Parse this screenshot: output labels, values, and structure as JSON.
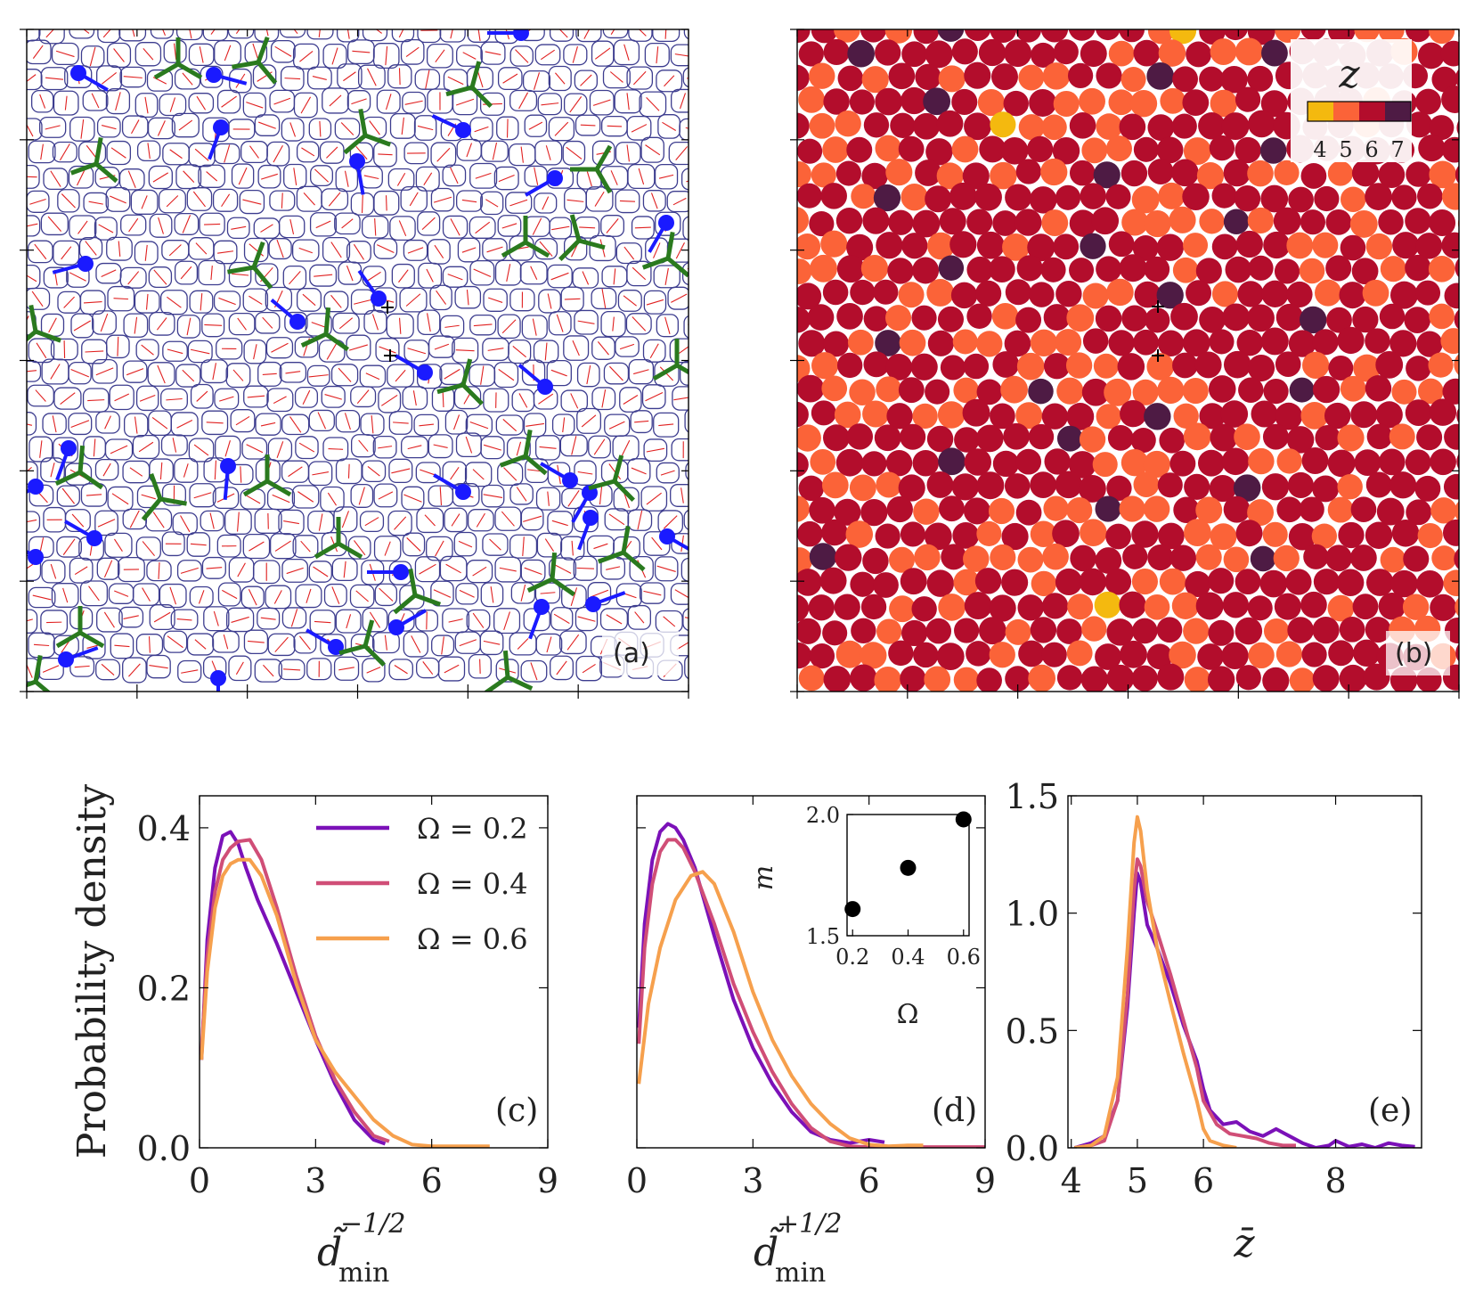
{
  "panels": {
    "a": {
      "label": "(a)"
    },
    "b": {
      "label": "(b)",
      "colorbar": {
        "title": "z",
        "ticks": [
          "4",
          "5",
          "6",
          "7"
        ],
        "colors": [
          "#f4b90f",
          "#fb6338",
          "#b30d2c",
          "#4e1b44"
        ]
      },
      "cell_colors": {
        "4": "#f4b90f",
        "5": "#fb6338",
        "6": "#b30d2c",
        "7": "#4e1b44"
      }
    }
  },
  "icon_names": [
    "positive-defect-marker-icon",
    "negative-defect-marker-icon",
    "core-cross-icon"
  ],
  "colors": {
    "cell_outline": "#3d3d8f",
    "orientation_line": "#e02020",
    "plus_half_defect": "#1a1aff",
    "minus_half_defect": "#2a7a1e"
  },
  "shared": {
    "ylabel": "Probability density"
  },
  "chart_data": [
    {
      "type": "line",
      "id": "c",
      "label": "(c)",
      "xlabel": "d̃",
      "xlabel_sup": "−1/2",
      "xlabel_sub": "min",
      "xlim": [
        0,
        9
      ],
      "ylim": [
        0,
        0.44
      ],
      "xticks": [
        0,
        3,
        6,
        9
      ],
      "yticks": [
        0.0,
        0.2,
        0.4
      ],
      "ytick_labels": [
        "0.0",
        "0.2",
        "0.4"
      ],
      "legend": [
        "Ω = 0.2",
        "Ω = 0.4",
        "Ω = 0.6"
      ],
      "series": [
        {
          "name": "Ω = 0.2",
          "color": "#7b11b8",
          "x": [
            0.05,
            0.2,
            0.4,
            0.6,
            0.8,
            1.0,
            1.2,
            1.5,
            2.0,
            2.5,
            3.0,
            3.5,
            4.0,
            4.5,
            4.8
          ],
          "y": [
            0.11,
            0.26,
            0.35,
            0.39,
            0.395,
            0.38,
            0.35,
            0.31,
            0.255,
            0.195,
            0.135,
            0.08,
            0.035,
            0.01,
            0.005
          ]
        },
        {
          "name": "Ω = 0.4",
          "color": "#d04e77",
          "x": [
            0.05,
            0.2,
            0.4,
            0.6,
            0.8,
            1.0,
            1.3,
            1.6,
            2.0,
            2.5,
            3.0,
            3.5,
            4.0,
            4.5,
            4.9
          ],
          "y": [
            0.12,
            0.24,
            0.32,
            0.36,
            0.375,
            0.383,
            0.385,
            0.36,
            0.3,
            0.215,
            0.14,
            0.085,
            0.045,
            0.015,
            0.008
          ]
        },
        {
          "name": "Ω = 0.6",
          "color": "#f6a04d",
          "x": [
            0.05,
            0.2,
            0.4,
            0.6,
            0.8,
            1.0,
            1.3,
            1.6,
            2.0,
            2.5,
            3.0,
            3.5,
            4.0,
            4.5,
            5.0,
            5.5,
            6.0,
            7.0,
            7.5
          ],
          "y": [
            0.11,
            0.22,
            0.3,
            0.34,
            0.355,
            0.36,
            0.36,
            0.34,
            0.29,
            0.205,
            0.135,
            0.095,
            0.065,
            0.035,
            0.015,
            0.004,
            0.002,
            0.002,
            0.002
          ]
        }
      ]
    },
    {
      "type": "line",
      "id": "d",
      "label": "(d)",
      "xlabel": "d̃",
      "xlabel_sup": "+1/2",
      "xlabel_sub": "min",
      "xlim": [
        0,
        9
      ],
      "ylim": [
        0,
        0.44
      ],
      "xticks": [
        0,
        3,
        6,
        9
      ],
      "yticks": [
        0.0,
        0.2,
        0.4
      ],
      "series": [
        {
          "name": "Ω = 0.2",
          "color": "#7b11b8",
          "x": [
            0.05,
            0.2,
            0.4,
            0.6,
            0.8,
            1.0,
            1.2,
            1.5,
            2.0,
            2.5,
            3.0,
            3.5,
            4.0,
            4.5,
            5.0,
            5.5,
            6.0,
            6.4
          ],
          "y": [
            0.15,
            0.28,
            0.36,
            0.395,
            0.405,
            0.4,
            0.385,
            0.35,
            0.265,
            0.185,
            0.125,
            0.08,
            0.045,
            0.02,
            0.01,
            0.006,
            0.01,
            0.007
          ]
        },
        {
          "name": "Ω = 0.4",
          "color": "#d04e77",
          "x": [
            0.05,
            0.2,
            0.4,
            0.6,
            0.8,
            1.0,
            1.2,
            1.5,
            2.0,
            2.5,
            3.0,
            3.5,
            4.0,
            4.5,
            5.0,
            5.5,
            6.0,
            9.0
          ],
          "y": [
            0.13,
            0.25,
            0.33,
            0.37,
            0.385,
            0.385,
            0.375,
            0.345,
            0.28,
            0.205,
            0.145,
            0.095,
            0.055,
            0.025,
            0.008,
            0.002,
            0.001,
            0.001
          ]
        },
        {
          "name": "Ω = 0.6",
          "color": "#f6a04d",
          "x": [
            0.05,
            0.3,
            0.6,
            1.0,
            1.4,
            1.7,
            2.0,
            2.5,
            3.0,
            3.5,
            4.0,
            4.5,
            5.0,
            5.5,
            6.0,
            6.5,
            7.0,
            7.4
          ],
          "y": [
            0.08,
            0.18,
            0.25,
            0.31,
            0.34,
            0.345,
            0.33,
            0.27,
            0.195,
            0.135,
            0.09,
            0.055,
            0.03,
            0.012,
            0.004,
            0.002,
            0.003,
            0.003
          ]
        }
      ],
      "inset": {
        "type": "scatter",
        "xlabel": "Ω",
        "ylabel": "m",
        "xlim": [
          0.18,
          0.62
        ],
        "ylim": [
          1.5,
          2.0
        ],
        "xticks": [
          0.2,
          0.4,
          0.6
        ],
        "xtick_labels": [
          "0.2",
          "0.4",
          "0.6"
        ],
        "yticks": [
          1.5,
          2.0
        ],
        "ytick_labels": [
          "1.5",
          "2.0"
        ],
        "x": [
          0.2,
          0.4,
          0.6
        ],
        "y": [
          1.61,
          1.78,
          1.98
        ]
      }
    },
    {
      "type": "line",
      "id": "e",
      "label": "(e)",
      "xlabel": "z̄",
      "xlim": [
        3.95,
        9.3
      ],
      "ylim": [
        0,
        1.5
      ],
      "xticks": [
        4,
        5,
        6,
        8
      ],
      "yticks": [
        0.0,
        0.5,
        1.0,
        1.5
      ],
      "ytick_labels": [
        "0.0",
        "0.5",
        "1.0",
        "1.5"
      ],
      "series": [
        {
          "name": "Ω = 0.2",
          "color": "#7b11b8",
          "x": [
            4.05,
            4.3,
            4.5,
            4.7,
            4.85,
            4.95,
            5.0,
            5.05,
            5.15,
            5.3,
            5.5,
            5.7,
            5.9,
            6.0,
            6.1,
            6.3,
            6.5,
            6.7,
            6.9,
            7.1,
            7.3,
            7.5,
            7.7,
            7.9,
            8.0,
            8.2,
            8.4,
            8.6,
            8.8,
            9.0,
            9.2
          ],
          "y": [
            0.0,
            0.02,
            0.05,
            0.2,
            0.6,
            1.0,
            1.17,
            1.13,
            0.95,
            0.85,
            0.7,
            0.52,
            0.37,
            0.25,
            0.16,
            0.1,
            0.11,
            0.07,
            0.05,
            0.08,
            0.05,
            0.02,
            0.0,
            0.01,
            0.03,
            0.005,
            0.015,
            0.0,
            0.02,
            0.01,
            0.005
          ]
        },
        {
          "name": "Ω = 0.4",
          "color": "#d04e77",
          "x": [
            4.05,
            4.3,
            4.5,
            4.7,
            4.85,
            4.95,
            5.0,
            5.05,
            5.15,
            5.3,
            5.5,
            5.7,
            5.9,
            6.0,
            6.2,
            6.4,
            6.6,
            6.8,
            7.0,
            7.2,
            7.4
          ],
          "y": [
            0.0,
            0.01,
            0.03,
            0.2,
            0.65,
            1.1,
            1.23,
            1.2,
            1.05,
            0.92,
            0.74,
            0.54,
            0.34,
            0.2,
            0.1,
            0.06,
            0.05,
            0.04,
            0.02,
            0.01,
            0.01
          ]
        },
        {
          "name": "Ω = 0.6",
          "color": "#f6a04d",
          "x": [
            4.05,
            4.3,
            4.5,
            4.7,
            4.85,
            4.95,
            5.0,
            5.05,
            5.15,
            5.3,
            5.5,
            5.7,
            5.9,
            6.0,
            6.1,
            6.3,
            6.5
          ],
          "y": [
            0.0,
            0.01,
            0.05,
            0.3,
            0.85,
            1.3,
            1.41,
            1.35,
            1.1,
            0.85,
            0.62,
            0.4,
            0.2,
            0.08,
            0.03,
            0.01,
            0.0
          ]
        }
      ]
    }
  ]
}
